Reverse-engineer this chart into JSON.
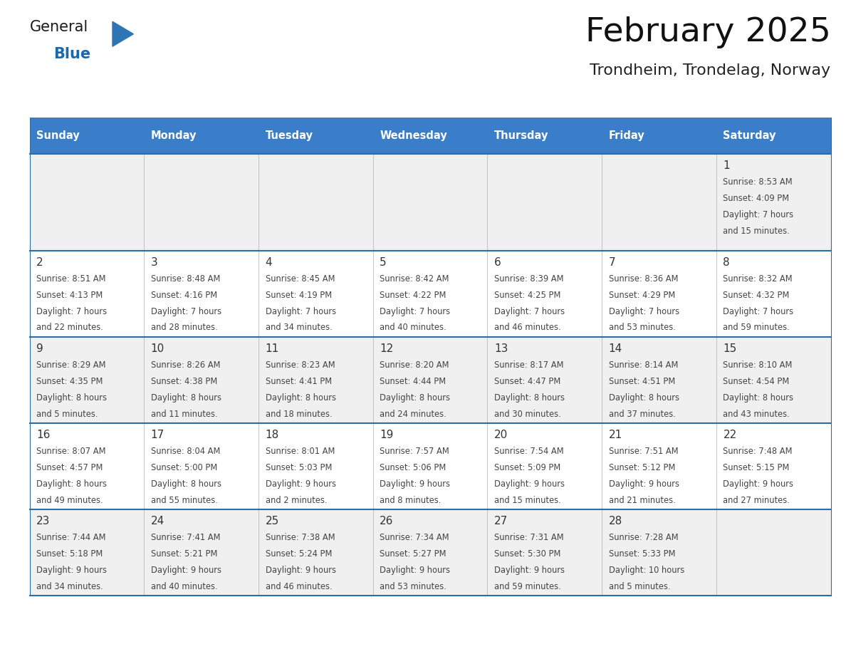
{
  "title": "February 2025",
  "subtitle": "Trondheim, Trondelag, Norway",
  "header_bg": "#3A7DC9",
  "header_text_color": "#FFFFFF",
  "day_headers": [
    "Sunday",
    "Monday",
    "Tuesday",
    "Wednesday",
    "Thursday",
    "Friday",
    "Saturday"
  ],
  "odd_row_bg": "#F0F0F0",
  "even_row_bg": "#FFFFFF",
  "cell_border_color": "#2E6DA4",
  "date_text_color": "#333333",
  "info_text_color": "#444444",
  "general_color": "#1a6aab",
  "blue_triangle_color": "#2e75b6",
  "calendar_data": [
    [
      null,
      null,
      null,
      null,
      null,
      null,
      {
        "day": 1,
        "sunrise": "8:53 AM",
        "sunset": "4:09 PM",
        "daylight": "7 hours\nand 15 minutes."
      }
    ],
    [
      {
        "day": 2,
        "sunrise": "8:51 AM",
        "sunset": "4:13 PM",
        "daylight": "7 hours\nand 22 minutes."
      },
      {
        "day": 3,
        "sunrise": "8:48 AM",
        "sunset": "4:16 PM",
        "daylight": "7 hours\nand 28 minutes."
      },
      {
        "day": 4,
        "sunrise": "8:45 AM",
        "sunset": "4:19 PM",
        "daylight": "7 hours\nand 34 minutes."
      },
      {
        "day": 5,
        "sunrise": "8:42 AM",
        "sunset": "4:22 PM",
        "daylight": "7 hours\nand 40 minutes."
      },
      {
        "day": 6,
        "sunrise": "8:39 AM",
        "sunset": "4:25 PM",
        "daylight": "7 hours\nand 46 minutes."
      },
      {
        "day": 7,
        "sunrise": "8:36 AM",
        "sunset": "4:29 PM",
        "daylight": "7 hours\nand 53 minutes."
      },
      {
        "day": 8,
        "sunrise": "8:32 AM",
        "sunset": "4:32 PM",
        "daylight": "7 hours\nand 59 minutes."
      }
    ],
    [
      {
        "day": 9,
        "sunrise": "8:29 AM",
        "sunset": "4:35 PM",
        "daylight": "8 hours\nand 5 minutes."
      },
      {
        "day": 10,
        "sunrise": "8:26 AM",
        "sunset": "4:38 PM",
        "daylight": "8 hours\nand 11 minutes."
      },
      {
        "day": 11,
        "sunrise": "8:23 AM",
        "sunset": "4:41 PM",
        "daylight": "8 hours\nand 18 minutes."
      },
      {
        "day": 12,
        "sunrise": "8:20 AM",
        "sunset": "4:44 PM",
        "daylight": "8 hours\nand 24 minutes."
      },
      {
        "day": 13,
        "sunrise": "8:17 AM",
        "sunset": "4:47 PM",
        "daylight": "8 hours\nand 30 minutes."
      },
      {
        "day": 14,
        "sunrise": "8:14 AM",
        "sunset": "4:51 PM",
        "daylight": "8 hours\nand 37 minutes."
      },
      {
        "day": 15,
        "sunrise": "8:10 AM",
        "sunset": "4:54 PM",
        "daylight": "8 hours\nand 43 minutes."
      }
    ],
    [
      {
        "day": 16,
        "sunrise": "8:07 AM",
        "sunset": "4:57 PM",
        "daylight": "8 hours\nand 49 minutes."
      },
      {
        "day": 17,
        "sunrise": "8:04 AM",
        "sunset": "5:00 PM",
        "daylight": "8 hours\nand 55 minutes."
      },
      {
        "day": 18,
        "sunrise": "8:01 AM",
        "sunset": "5:03 PM",
        "daylight": "9 hours\nand 2 minutes."
      },
      {
        "day": 19,
        "sunrise": "7:57 AM",
        "sunset": "5:06 PM",
        "daylight": "9 hours\nand 8 minutes."
      },
      {
        "day": 20,
        "sunrise": "7:54 AM",
        "sunset": "5:09 PM",
        "daylight": "9 hours\nand 15 minutes."
      },
      {
        "day": 21,
        "sunrise": "7:51 AM",
        "sunset": "5:12 PM",
        "daylight": "9 hours\nand 21 minutes."
      },
      {
        "day": 22,
        "sunrise": "7:48 AM",
        "sunset": "5:15 PM",
        "daylight": "9 hours\nand 27 minutes."
      }
    ],
    [
      {
        "day": 23,
        "sunrise": "7:44 AM",
        "sunset": "5:18 PM",
        "daylight": "9 hours\nand 34 minutes."
      },
      {
        "day": 24,
        "sunrise": "7:41 AM",
        "sunset": "5:21 PM",
        "daylight": "9 hours\nand 40 minutes."
      },
      {
        "day": 25,
        "sunrise": "7:38 AM",
        "sunset": "5:24 PM",
        "daylight": "9 hours\nand 46 minutes."
      },
      {
        "day": 26,
        "sunrise": "7:34 AM",
        "sunset": "5:27 PM",
        "daylight": "9 hours\nand 53 minutes."
      },
      {
        "day": 27,
        "sunrise": "7:31 AM",
        "sunset": "5:30 PM",
        "daylight": "9 hours\nand 59 minutes."
      },
      {
        "day": 28,
        "sunrise": "7:28 AM",
        "sunset": "5:33 PM",
        "daylight": "10 hours\nand 5 minutes."
      },
      null
    ]
  ],
  "figsize": [
    11.88,
    9.18
  ],
  "dpi": 100
}
